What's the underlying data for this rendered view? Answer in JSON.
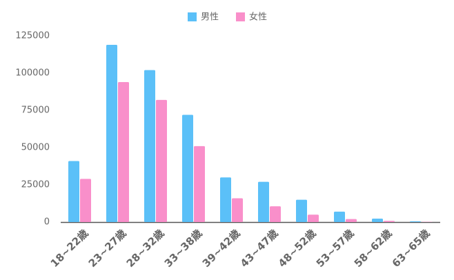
{
  "chart_data": {
    "type": "bar",
    "categories": [
      "18~22歳",
      "23~27歳",
      "28~32歳",
      "33~38歳",
      "39~42歳",
      "43~47歳",
      "48~52歳",
      "53~57歳",
      "58~62歳",
      "63~65歳"
    ],
    "series": [
      {
        "name": "男性",
        "color": "#5bc0f8",
        "values": [
          41000,
          119000,
          102000,
          72000,
          30000,
          27000,
          15000,
          7000,
          2300,
          500
        ]
      },
      {
        "name": "女性",
        "color": "#f98fca",
        "values": [
          29000,
          94000,
          82000,
          51000,
          16000,
          10600,
          5000,
          2000,
          800,
          200
        ]
      }
    ],
    "ylim": [
      0,
      125000
    ],
    "yticks": [
      0,
      25000,
      50000,
      75000,
      100000,
      125000
    ],
    "grid": false,
    "legend": "top"
  }
}
